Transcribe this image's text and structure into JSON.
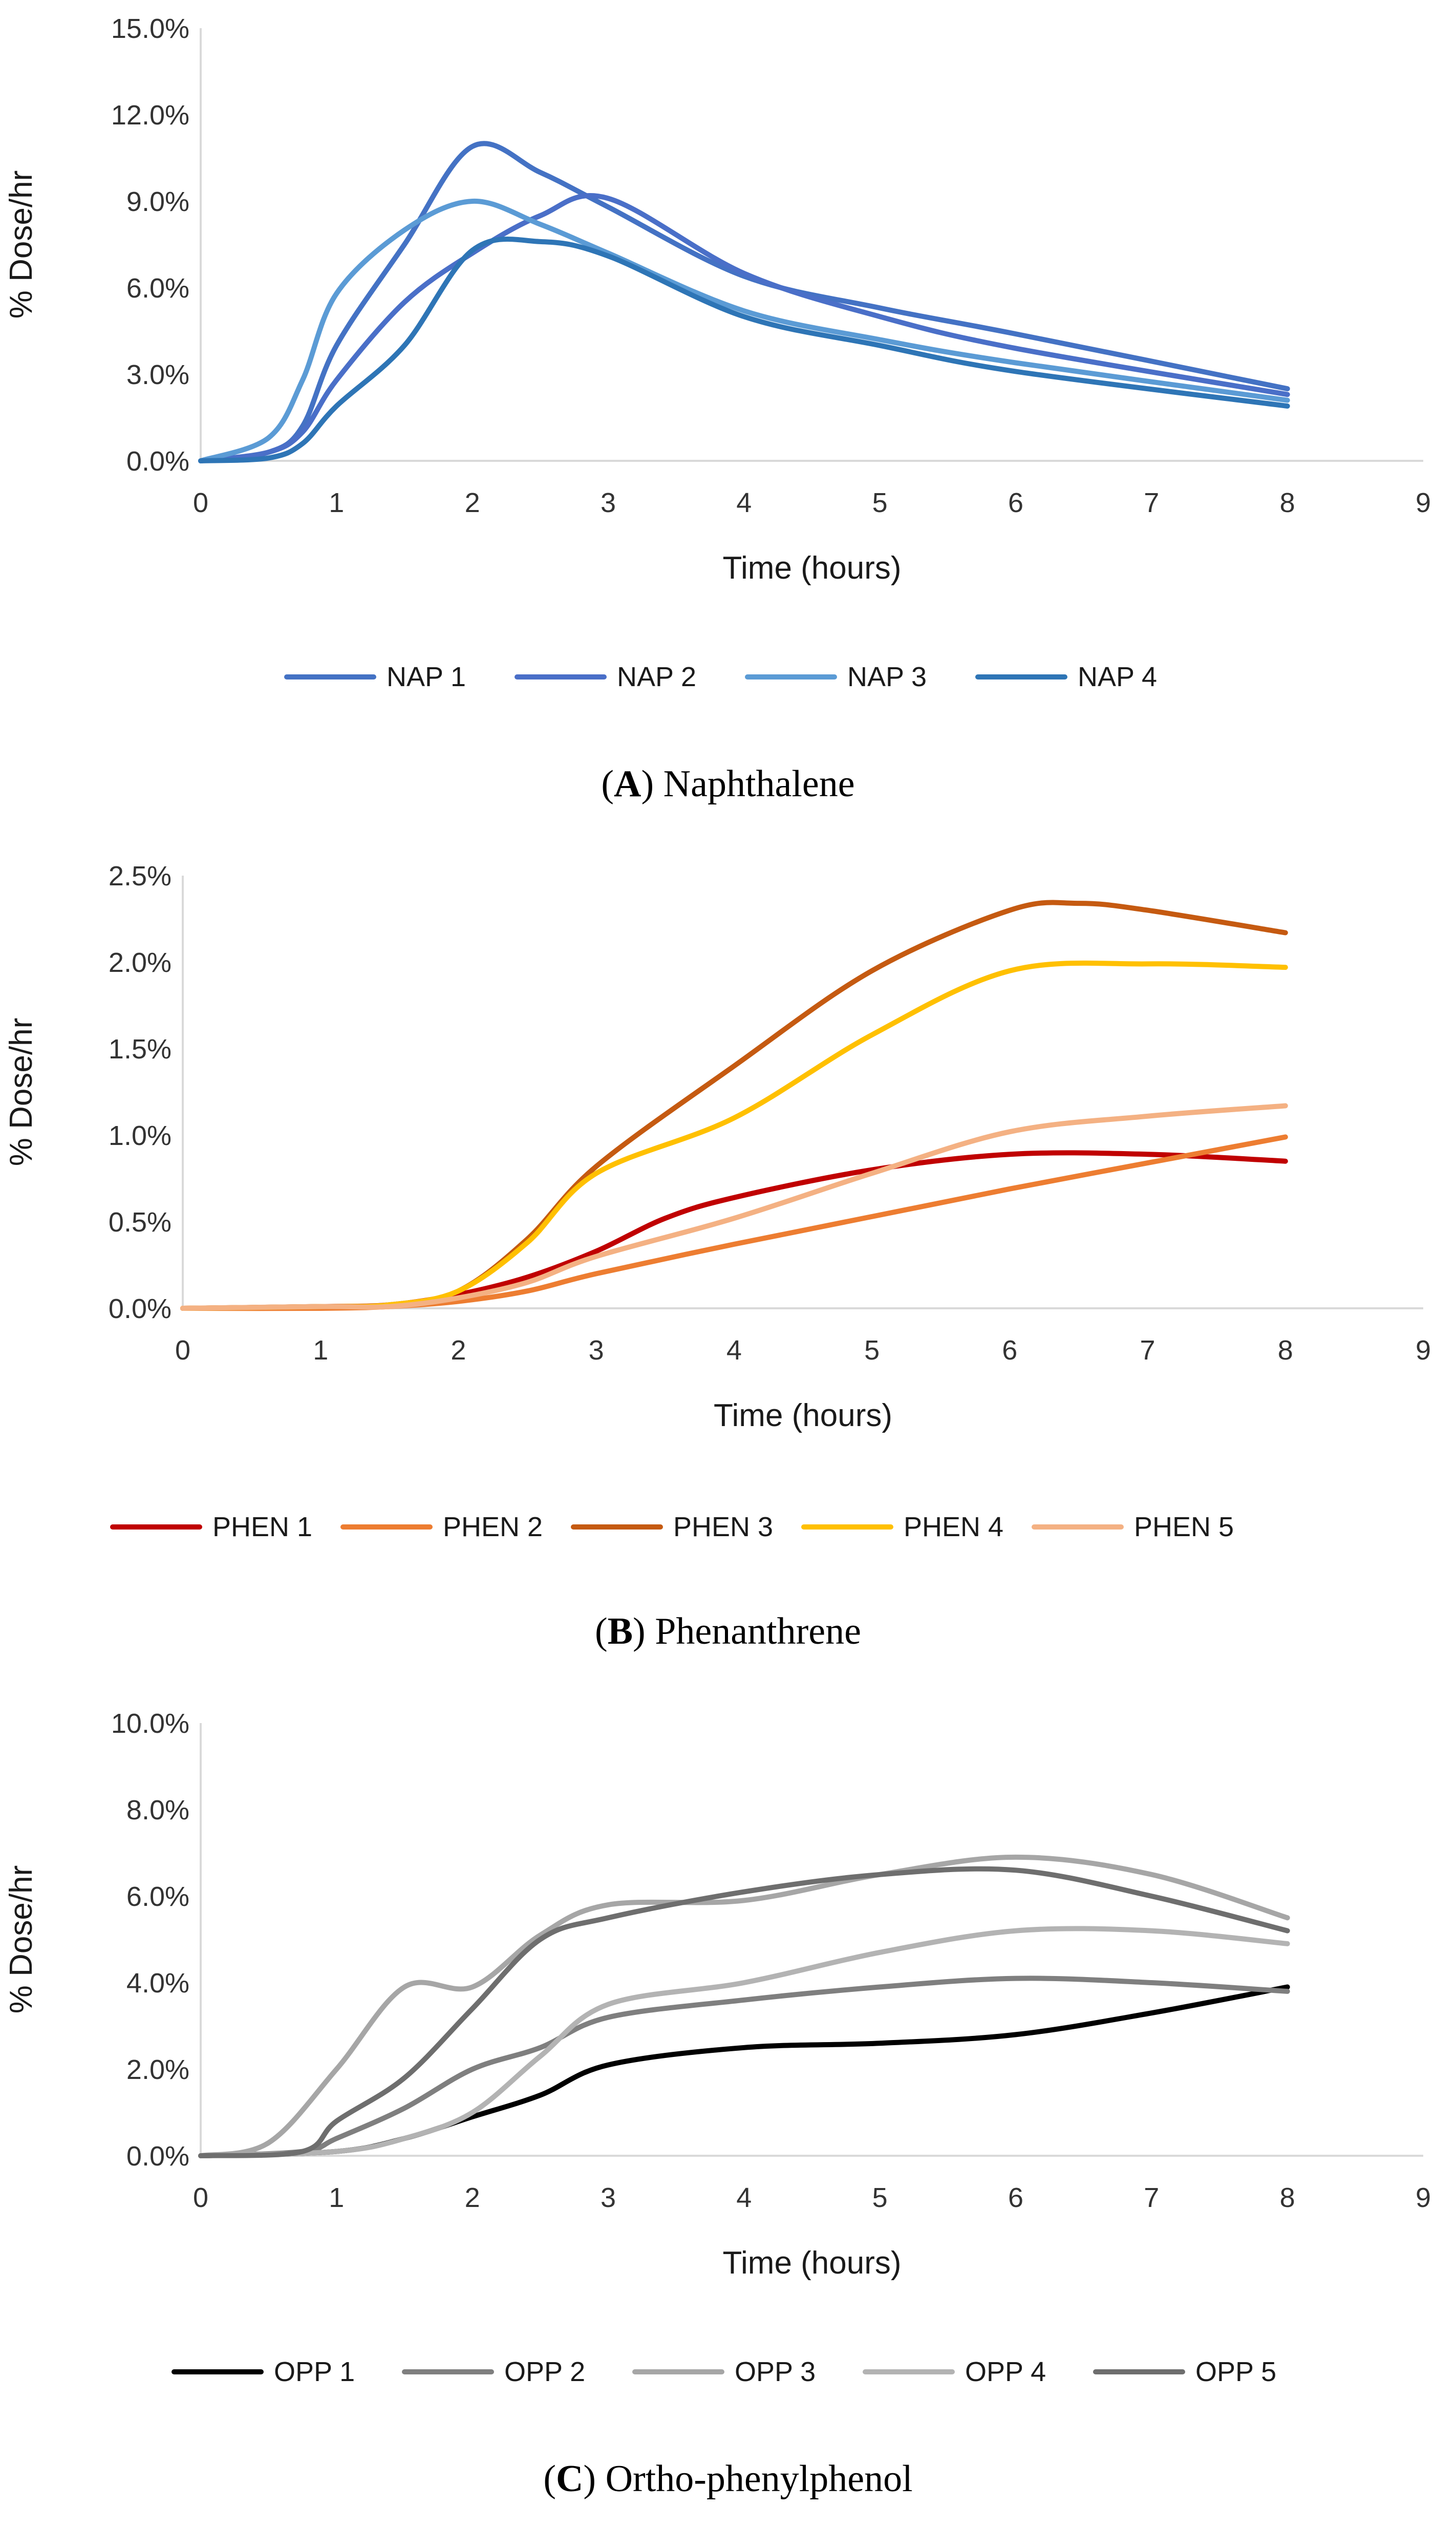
{
  "chart_data": [
    {
      "type": "line",
      "id": "A",
      "caption_letter": "A",
      "caption_text": " Naphthalene",
      "xlabel": "Time (hours)",
      "ylabel": "% Dose/hr",
      "xlim": [
        0,
        9
      ],
      "ylim": [
        0,
        15
      ],
      "x_ticks": [
        "0",
        "1",
        "2",
        "3",
        "4",
        "5",
        "6",
        "7",
        "8",
        "9"
      ],
      "y_ticks": [
        "0.0%",
        "3.0%",
        "6.0%",
        "9.0%",
        "12.0%",
        "15.0%"
      ],
      "legend_position": "bottom",
      "series": [
        {
          "name": "NAP 1",
          "color": "#4472c4",
          "x": [
            0,
            0.5,
            0.75,
            1,
            1.5,
            2,
            2.5,
            3,
            4,
            5,
            6,
            8
          ],
          "y": [
            0,
            0.3,
            1.2,
            4.0,
            7.5,
            10.9,
            10.0,
            8.8,
            6.4,
            5.3,
            4.4,
            2.5
          ]
        },
        {
          "name": "NAP 2",
          "color": "#4a6fc8",
          "x": [
            0,
            0.5,
            0.75,
            1,
            1.5,
            2,
            2.5,
            3,
            4,
            5,
            6,
            8
          ],
          "y": [
            0,
            0.3,
            1.0,
            2.8,
            5.5,
            7.2,
            8.5,
            9.1,
            6.5,
            5.0,
            3.9,
            2.3
          ]
        },
        {
          "name": "NAP 3",
          "color": "#5b9bd5",
          "x": [
            0,
            0.5,
            0.75,
            1,
            1.5,
            2,
            2.5,
            3,
            4,
            5,
            6,
            8
          ],
          "y": [
            0,
            0.8,
            2.8,
            5.8,
            8.0,
            9.0,
            8.2,
            7.2,
            5.2,
            4.2,
            3.4,
            2.1
          ]
        },
        {
          "name": "NAP 4",
          "color": "#2e75b6",
          "x": [
            0,
            0.5,
            0.75,
            1,
            1.5,
            2,
            2.5,
            3,
            4,
            5,
            6,
            8
          ],
          "y": [
            0,
            0.1,
            0.6,
            1.9,
            4.0,
            7.3,
            7.6,
            7.1,
            5.0,
            4.0,
            3.1,
            1.9
          ]
        }
      ]
    },
    {
      "type": "line",
      "id": "B",
      "caption_letter": "B",
      "caption_text": " Phenanthrene",
      "xlabel": "Time (hours)",
      "ylabel": "% Dose/hr",
      "xlim": [
        0,
        9
      ],
      "ylim": [
        0,
        2.5
      ],
      "x_ticks": [
        "0",
        "1",
        "2",
        "3",
        "4",
        "5",
        "6",
        "7",
        "8",
        "9"
      ],
      "y_ticks": [
        "0.0%",
        "0.5%",
        "1.0%",
        "1.5%",
        "2.0%",
        "2.5%"
      ],
      "legend_position": "bottom",
      "series": [
        {
          "name": "PHEN 1",
          "color": "#c00000",
          "x": [
            0,
            1,
            1.5,
            2,
            2.5,
            3,
            3.5,
            4,
            5,
            6,
            7,
            8
          ],
          "y": [
            0,
            0.01,
            0.02,
            0.08,
            0.18,
            0.33,
            0.52,
            0.64,
            0.8,
            0.89,
            0.89,
            0.85
          ]
        },
        {
          "name": "PHEN 2",
          "color": "#ed7d31",
          "x": [
            0,
            1,
            1.5,
            2,
            2.5,
            3,
            4,
            5,
            6,
            7,
            8
          ],
          "y": [
            0,
            0.0,
            0.01,
            0.04,
            0.1,
            0.2,
            0.37,
            0.53,
            0.69,
            0.84,
            0.99
          ]
        },
        {
          "name": "PHEN 3",
          "color": "#c55a11",
          "x": [
            0,
            1,
            1.5,
            2,
            2.5,
            3,
            4,
            5,
            6,
            6.5,
            7,
            8
          ],
          "y": [
            0,
            0.01,
            0.02,
            0.1,
            0.4,
            0.82,
            1.4,
            1.95,
            2.3,
            2.34,
            2.3,
            2.17
          ]
        },
        {
          "name": "PHEN 4",
          "color": "#ffc000",
          "x": [
            0,
            1,
            1.5,
            2,
            2.5,
            3,
            4,
            5,
            6,
            7,
            8
          ],
          "y": [
            0,
            0.01,
            0.02,
            0.1,
            0.38,
            0.78,
            1.1,
            1.58,
            1.95,
            1.99,
            1.97
          ]
        },
        {
          "name": "PHEN 5",
          "color": "#f4b183",
          "x": [
            0,
            1,
            1.5,
            2,
            2.5,
            3,
            4,
            5,
            6,
            7,
            8
          ],
          "y": [
            0,
            0.01,
            0.01,
            0.06,
            0.15,
            0.3,
            0.52,
            0.78,
            1.02,
            1.11,
            1.17
          ]
        }
      ]
    },
    {
      "type": "line",
      "id": "C",
      "caption_letter": "C",
      "caption_text": " Ortho-phenylphenol",
      "xlabel": "Time (hours)",
      "ylabel": "% Dose/hr",
      "xlim": [
        0,
        9
      ],
      "ylim": [
        0,
        10
      ],
      "x_ticks": [
        "0",
        "1",
        "2",
        "3",
        "4",
        "5",
        "6",
        "7",
        "8",
        "9"
      ],
      "y_ticks": [
        "0.0%",
        "2.0%",
        "4.0%",
        "6.0%",
        "8.0%",
        "10.0%"
      ],
      "legend_position": "bottom",
      "series": [
        {
          "name": "OPP 1",
          "color": "#000000",
          "x": [
            0,
            1,
            1.5,
            2,
            2.5,
            3,
            4,
            5,
            6,
            7,
            8
          ],
          "y": [
            0,
            0.1,
            0.4,
            0.9,
            1.4,
            2.1,
            2.5,
            2.6,
            2.8,
            3.3,
            3.9
          ]
        },
        {
          "name": "OPP 2",
          "color": "#7f7f7f",
          "x": [
            0,
            0.75,
            1,
            1.5,
            2,
            2.5,
            3,
            4,
            5,
            6,
            7,
            8
          ],
          "y": [
            0,
            0.1,
            0.4,
            1.1,
            2.0,
            2.5,
            3.2,
            3.6,
            3.9,
            4.1,
            4.0,
            3.8
          ]
        },
        {
          "name": "OPP 3",
          "color": "#a6a6a6",
          "x": [
            0,
            0.5,
            1,
            1.5,
            2,
            2.5,
            3,
            4,
            5,
            6,
            7,
            8
          ],
          "y": [
            0,
            0.3,
            2.0,
            3.9,
            3.9,
            5.1,
            5.8,
            5.9,
            6.5,
            6.9,
            6.5,
            5.5
          ]
        },
        {
          "name": "OPP 4",
          "color": "#b3b3b3",
          "x": [
            0,
            1,
            1.5,
            2,
            2.5,
            3,
            4,
            5,
            6,
            7,
            8
          ],
          "y": [
            0,
            0.1,
            0.4,
            1.0,
            2.3,
            3.5,
            4.0,
            4.7,
            5.2,
            5.2,
            4.9
          ]
        },
        {
          "name": "OPP 5",
          "color": "#6e6e6e",
          "x": [
            0,
            0.75,
            1,
            1.5,
            2,
            2.5,
            3,
            4,
            5,
            6,
            7,
            8
          ],
          "y": [
            0,
            0.1,
            0.8,
            1.8,
            3.4,
            5.0,
            5.5,
            6.1,
            6.5,
            6.6,
            6.0,
            5.2
          ]
        }
      ]
    }
  ]
}
